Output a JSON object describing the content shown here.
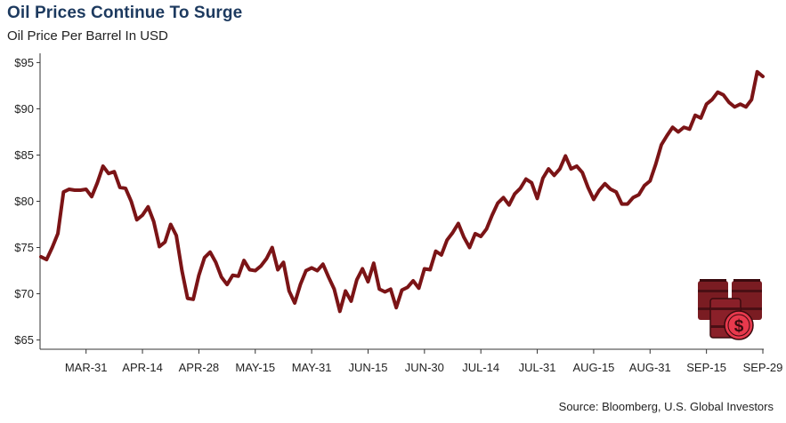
{
  "chart_data": {
    "type": "line",
    "title": "Oil Prices Continue To Surge",
    "subtitle": "Oil Price Per Barrel In USD",
    "source": "Source: Bloomberg, U.S. Global Investors",
    "xlabel": "",
    "ylabel": "",
    "ylim": [
      64,
      96
    ],
    "yticks": [
      65,
      70,
      75,
      80,
      85,
      90,
      95
    ],
    "ytick_labels": [
      "$65",
      "$70",
      "$75",
      "$80",
      "$85",
      "$90",
      "$95"
    ],
    "xtick_labels": [
      "MAR-31",
      "APR-14",
      "APR-28",
      "MAY-15",
      "MAY-31",
      "JUN-15",
      "JUN-30",
      "JUL-14",
      "JUL-31",
      "AUG-15",
      "AUG-31",
      "SEP-15",
      "SEP-29"
    ],
    "xtick_index": [
      8,
      18,
      28,
      38,
      48,
      58,
      68,
      78,
      88,
      98,
      108,
      118,
      128
    ],
    "grid": false,
    "legend": "none",
    "line_color": "#7b1416",
    "series": [
      {
        "values": [
          74.0,
          73.7,
          75.0,
          76.5,
          81.0,
          81.3,
          81.2,
          81.2,
          81.3,
          80.5,
          82.0,
          83.8,
          83.0,
          83.2,
          81.5,
          81.4,
          80.0,
          78.0,
          78.5,
          79.4,
          77.8,
          75.1,
          75.6,
          77.5,
          76.3,
          72.5,
          69.5,
          69.4,
          72.0,
          73.9,
          74.5,
          73.4,
          71.8,
          71.0,
          72.0,
          71.9,
          73.6,
          72.6,
          72.5,
          73.0,
          73.8,
          75.0,
          72.6,
          73.4,
          70.3,
          69.0,
          71.0,
          72.5,
          72.8,
          72.5,
          73.2,
          71.8,
          70.5,
          68.1,
          70.3,
          69.2,
          71.5,
          72.7,
          71.3,
          73.3,
          70.5,
          70.2,
          70.5,
          68.5,
          70.4,
          70.7,
          71.4,
          70.6,
          72.7,
          72.6,
          74.6,
          74.2,
          75.8,
          76.6,
          77.6,
          76.1,
          75.0,
          76.5,
          76.2,
          77.0,
          78.5,
          79.8,
          80.4,
          79.6,
          80.8,
          81.4,
          82.4,
          82.0,
          80.3,
          82.5,
          83.5,
          82.8,
          83.5,
          84.9,
          83.5,
          83.8,
          83.1,
          81.5,
          80.2,
          81.2,
          81.9,
          81.3,
          81.0,
          79.7,
          79.7,
          80.4,
          80.7,
          81.7,
          82.2,
          84.0,
          86.1,
          87.1,
          88.0,
          87.5,
          88.0,
          87.8,
          89.3,
          89.0,
          90.5,
          91.0,
          91.8,
          91.5,
          90.7,
          90.2,
          90.5,
          90.2,
          91.0,
          94.0,
          93.5
        ]
      }
    ]
  },
  "icon": {
    "name": "oil-barrels-dollar-icon",
    "barrel_color": "#7a1c22",
    "coin_color": "#e8394d"
  }
}
